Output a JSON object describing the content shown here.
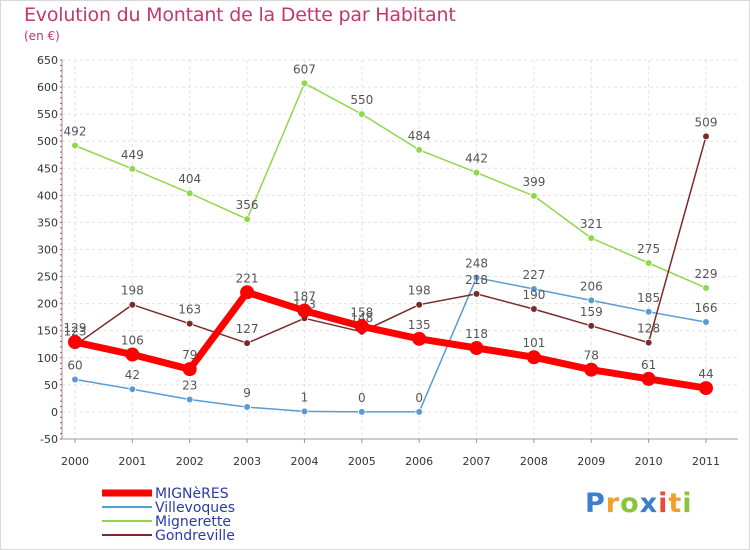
{
  "chart_data": {
    "type": "line",
    "title": "Evolution du Montant de la Dette par Habitant",
    "unit_label": "(en €)",
    "categories": [
      "2000",
      "2001",
      "2002",
      "2003",
      "2004",
      "2005",
      "2006",
      "2007",
      "2008",
      "2009",
      "2010",
      "2011"
    ],
    "ylim": [
      -50,
      650
    ],
    "yticks": [
      -50,
      0,
      50,
      100,
      150,
      200,
      250,
      300,
      350,
      400,
      450,
      500,
      550,
      600,
      650
    ],
    "grid": true,
    "legend_position": "bottom-left",
    "series": [
      {
        "name": "Villevoques",
        "color": "#5b9bd5",
        "values": [
          60,
          42,
          23,
          9,
          1,
          0,
          0,
          248,
          227,
          206,
          185,
          166
        ]
      },
      {
        "name": "Mignerette",
        "color": "#8fd84a",
        "values": [
          492,
          449,
          404,
          356,
          607,
          550,
          484,
          442,
          399,
          321,
          275,
          229
        ]
      },
      {
        "name": "Gondreville",
        "color": "#7a2a2a",
        "values": [
          123,
          198,
          163,
          127,
          173,
          148,
          198,
          218,
          190,
          159,
          128,
          509
        ]
      },
      {
        "name": "MIGNèRES",
        "color": "#ff0000",
        "values": [
          129,
          106,
          79,
          221,
          187,
          158,
          135,
          118,
          101,
          78,
          61,
          44
        ]
      }
    ],
    "data_labels": [
      {
        "series": "Villevoques",
        "labels": [
          "60",
          "42",
          "23",
          "9",
          "1",
          "0",
          "0",
          "248",
          "227",
          "206",
          "185",
          "166"
        ]
      },
      {
        "series": "Mignerette",
        "labels": [
          "492",
          "449",
          "404",
          "356",
          "607",
          "550",
          "484",
          "442",
          "399",
          "321",
          "275",
          "229"
        ]
      },
      {
        "series": "Gondreville",
        "labels": [
          "123",
          "198",
          "163",
          "127",
          "173",
          "148",
          "198",
          "218",
          "190",
          "159",
          "128",
          "509"
        ]
      },
      {
        "series": "MIGNèRES",
        "labels": [
          "129",
          "106",
          "79",
          "221",
          "187",
          "158",
          "135",
          "118",
          "101",
          "78",
          "61",
          "44"
        ]
      }
    ]
  },
  "legend": [
    {
      "name": "MIGNèRES",
      "color": "#ff0000"
    },
    {
      "name": "Villevoques",
      "color": "#5b9bd5"
    },
    {
      "name": "Mignerette",
      "color": "#8fd84a"
    },
    {
      "name": "Gondreville",
      "color": "#7a2a2a"
    }
  ],
  "logo": {
    "letters": [
      "P",
      "r",
      "o",
      "x",
      "i",
      "t",
      "i"
    ],
    "colors": [
      "#3a7fd0",
      "#f2a02a",
      "#8ac43a",
      "#3a7fd0",
      "#e8493a",
      "#f2a02a",
      "#8ac43a"
    ]
  }
}
